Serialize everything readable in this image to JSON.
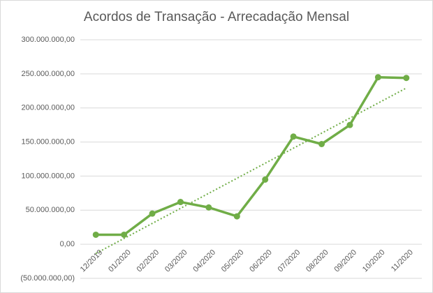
{
  "chart_data": {
    "type": "line",
    "title": "Acordos de Transação - Arrecadação Mensal",
    "categories": [
      "12/2019",
      "01/2020",
      "02/2020",
      "03/2020",
      "04/2020",
      "05/2020",
      "06/2020",
      "07/2020",
      "08/2020",
      "09/2020",
      "10/2020",
      "11/2020"
    ],
    "series": [
      {
        "name": "Arrecadação",
        "color": "#70ad47",
        "values": [
          14000000,
          14000000,
          45000000,
          62000000,
          54000000,
          41000000,
          95000000,
          158000000,
          147000000,
          175000000,
          245000000,
          244000000
        ]
      }
    ],
    "trendline": "linear",
    "ylim": [
      -50000000,
      300000000
    ],
    "yticks": [
      {
        "value": -50000000,
        "label": "(50.000.000,00)"
      },
      {
        "value": 0,
        "label": "0,00"
      },
      {
        "value": 50000000,
        "label": "50.000.000,00"
      },
      {
        "value": 100000000,
        "label": "100.000.000,00"
      },
      {
        "value": 150000000,
        "label": "150.000.000,00"
      },
      {
        "value": 200000000,
        "label": "200.000.000,00"
      },
      {
        "value": 250000000,
        "label": "250.000.000,00"
      },
      {
        "value": 300000000,
        "label": "300.000.000,00"
      }
    ],
    "grid": true
  }
}
